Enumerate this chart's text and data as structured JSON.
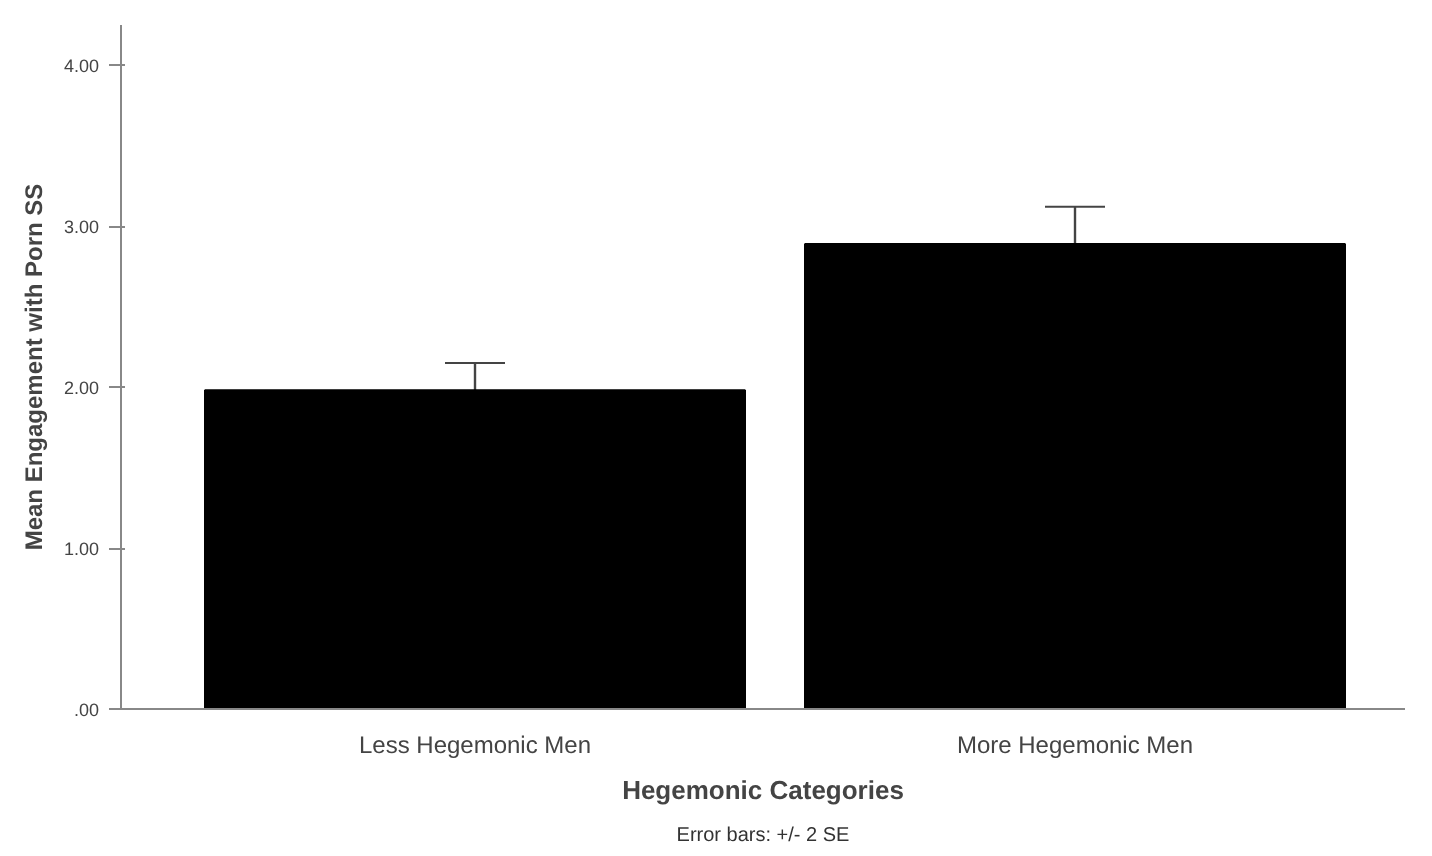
{
  "chart_data": {
    "type": "bar",
    "categories": [
      "Less Hegemonic Men",
      "More Hegemonic Men"
    ],
    "values": [
      1.98,
      2.89
    ],
    "errors": [
      0.17,
      0.23
    ],
    "color": "#000000",
    "ylabel": "Mean Engagement with Porn SS",
    "xlabel": "Hegemonic Categories",
    "annotations": [
      "Error bars: +/- 2 SE"
    ],
    "ylim": [
      0,
      4.25
    ],
    "yticks": [
      {
        "value": 0,
        "label": ".00"
      },
      {
        "value": 1,
        "label": "1.00"
      },
      {
        "value": 2,
        "label": "2.00"
      },
      {
        "value": 3,
        "label": "3.00"
      },
      {
        "value": 4,
        "label": "4.00"
      }
    ],
    "grid": false
  }
}
